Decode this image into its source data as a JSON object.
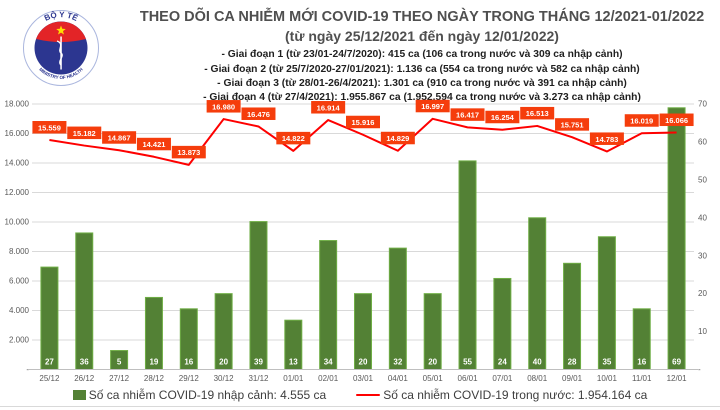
{
  "header": {
    "title": "THEO DÕI CA NHIỄM MỚI COVID-19 THEO NGÀY TRONG THÁNG 12/2021-01/2022",
    "subtitle": "(từ ngày 25/12/2021 đến ngày 12/01/2022)",
    "phases": [
      "- Giai đoạn 1 (từ 23/01-24/7/2020): 415 ca (106 ca trong nước và 309 ca nhập cảnh)",
      "- Giai đoạn 2 (từ 25/7/2020-27/01/2021): 1.136 ca (554 ca trong nước và 582 ca nhập cảnh)",
      "- Giai đoạn 3 (từ 28/01-26/4/2021): 1.301 ca (910 ca trong nước và 391 ca nhập cảnh)",
      "- Giai đoạn 4 (từ 27/4/2021): 1.955.867 ca (1.952.594 ca trong nước và 3.273 ca nhập cảnh)"
    ],
    "logo": {
      "top_text": "BỘ Y TẾ",
      "bottom_text": "MINISTRY OF HEALTH"
    }
  },
  "chart_data": {
    "type": "combo bar+line",
    "categories": [
      "25/12",
      "26/12",
      "27/12",
      "28/12",
      "29/12",
      "30/12",
      "31/12",
      "01/01",
      "02/01",
      "03/01",
      "04/01",
      "05/01",
      "06/01",
      "07/01",
      "08/01",
      "09/01",
      "10/01",
      "11/01",
      "12/01"
    ],
    "series": [
      {
        "name": "Số ca nhiễm COVID-19 nhập cảnh",
        "chart": "bar",
        "axis": "right",
        "color": "#538135",
        "border_color": "#6fae45",
        "values": [
          27,
          36,
          5,
          19,
          16,
          20,
          39,
          13,
          34,
          20,
          32,
          20,
          55,
          24,
          40,
          28,
          35,
          16,
          69
        ]
      },
      {
        "name": "Số ca nhiễm COVID-19 trong nước",
        "chart": "line",
        "axis": "left",
        "color": "#fe0000",
        "label_bg": "#f53d0c",
        "values": [
          15559,
          15182,
          14867,
          14421,
          13873,
          16980,
          16476,
          14822,
          16914,
          15916,
          14829,
          16997,
          16417,
          16254,
          16513,
          15751,
          14783,
          16019,
          16066
        ],
        "value_labels": [
          "15.559",
          "15.182",
          "14.867",
          "14.421",
          "13.873",
          "16.980",
          "16.476",
          "14.822",
          "16.914",
          "15.916",
          "14.829",
          "16.997",
          "16.417",
          "16.254",
          "16.513",
          "15.751",
          "14.783",
          "16.019",
          "16.066"
        ]
      }
    ],
    "left_axis": {
      "range": [
        0,
        18000
      ],
      "step": 2000,
      "ticks": [
        "18.000",
        "16.000",
        "14.000",
        "12.000",
        "10.000",
        "8.000",
        "6.000",
        "4.000",
        "2.000",
        "-"
      ]
    },
    "right_axis": {
      "range": [
        0,
        70
      ],
      "step": 10,
      "ticks": [
        "70",
        "60",
        "50",
        "40",
        "30",
        "20",
        "10",
        "-"
      ]
    },
    "grid": {
      "horizontal": true,
      "color": "#d9d9d9",
      "axis_line_color": "#bfbfbf"
    },
    "legend_position": "bottom"
  },
  "legend": {
    "items": [
      {
        "label": "Số ca nhiễm COVID-19 nhập cảnh: 4.555 ca",
        "marker": "square",
        "color": "#538135"
      },
      {
        "label": "Số ca nhiễm COVID-19 trong nước: 1.954.164 ca",
        "marker": "line",
        "color": "#fe0000"
      }
    ]
  },
  "colors": {
    "title_text": "#4f4f4f",
    "phase_text": "#1f1f1f",
    "axis_text": "#595959",
    "bar_fill": "#538135",
    "bar_border": "#6fae45",
    "bar_label_text": "#ffffff",
    "line": "#fe0000",
    "line_label_bg": "#f53d0c",
    "line_label_text": "#ffffff",
    "gridline": "#d9d9d9",
    "logo_blue": "#2c3690",
    "logo_red": "#e32427",
    "logo_star": "#ffde00"
  }
}
